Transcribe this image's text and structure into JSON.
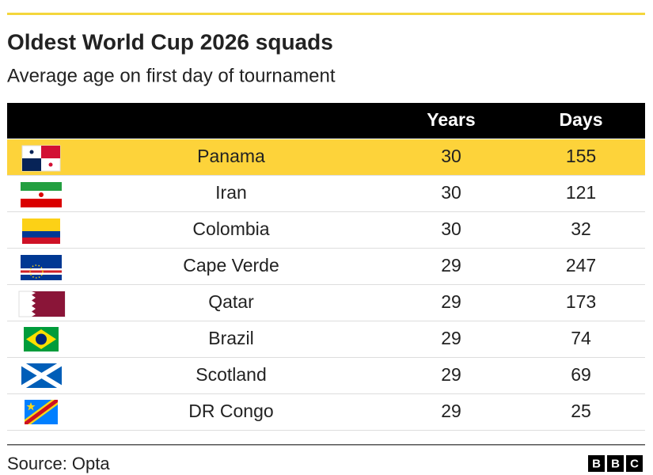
{
  "header": {
    "title": "Oldest World Cup 2026 squads",
    "subtitle": "Average age on first day of tournament"
  },
  "table": {
    "columns": [
      "Years",
      "Days"
    ],
    "rows": [
      [
        "Panama",
        30,
        155
      ],
      [
        "Iran",
        30,
        121
      ],
      [
        "Colombia",
        30,
        32
      ],
      [
        "Cape Verde",
        29,
        247
      ],
      [
        "Qatar",
        29,
        173
      ],
      [
        "Brazil",
        29,
        74
      ],
      [
        "Scotland",
        29,
        69
      ],
      [
        "DR Congo",
        29,
        25
      ]
    ]
  },
  "footer": {
    "source": "Source: Opta",
    "logo": [
      "B",
      "B",
      "C"
    ]
  }
}
